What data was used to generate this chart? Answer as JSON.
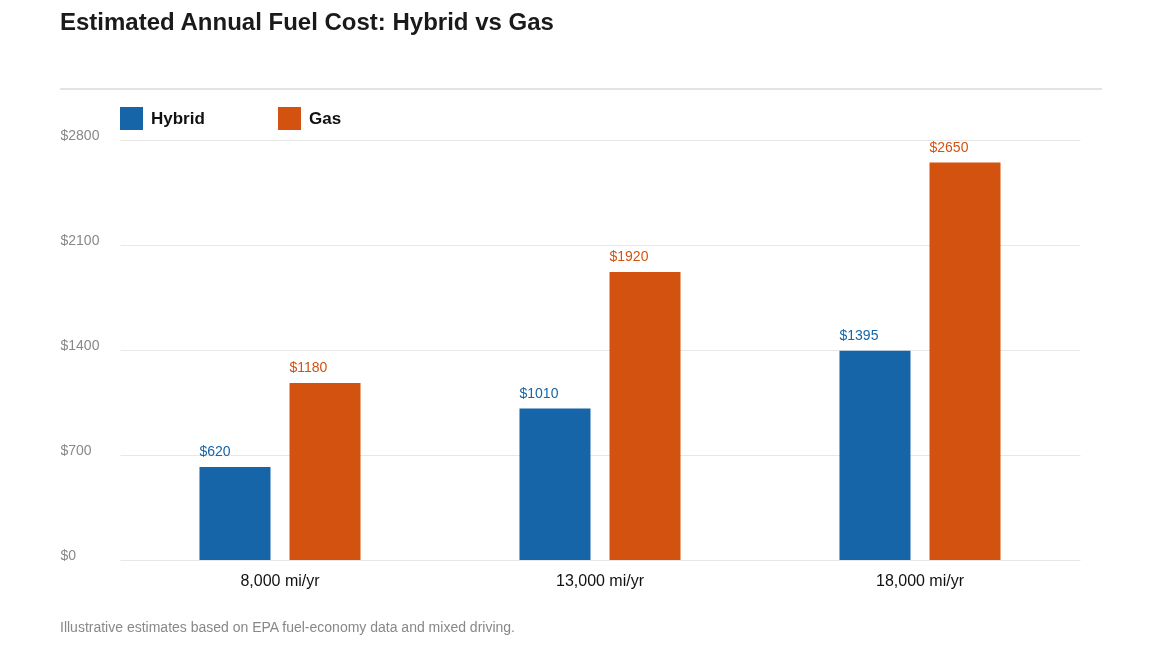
{
  "chart_data": {
    "type": "bar",
    "title": "Estimated Annual Fuel Cost: Hybrid vs Gas",
    "categories": [
      "8,000 mi/yr",
      "13,000 mi/yr",
      "18,000 mi/yr"
    ],
    "series": [
      {
        "name": "Hybrid",
        "color": "#1565a8",
        "values": [
          620,
          1010,
          1395
        ],
        "value_labels": [
          "$620",
          "$1010",
          "$1395"
        ]
      },
      {
        "name": "Gas",
        "color": "#d4520f",
        "values": [
          1180,
          1920,
          2650
        ],
        "value_labels": [
          "$1180",
          "$1920",
          "$2650"
        ]
      }
    ],
    "ylim": [
      0,
      2800
    ],
    "yticks": [
      {
        "value": 0,
        "label": "$0"
      },
      {
        "value": 700,
        "label": "$700"
      },
      {
        "value": 1400,
        "label": "$1400"
      },
      {
        "value": 2100,
        "label": "$2100"
      },
      {
        "value": 2800,
        "label": "$2800"
      }
    ],
    "grid": "y",
    "legend": "top left",
    "annotations": [
      "Illustrative estimates based on EPA fuel-economy data and mixed driving."
    ]
  }
}
